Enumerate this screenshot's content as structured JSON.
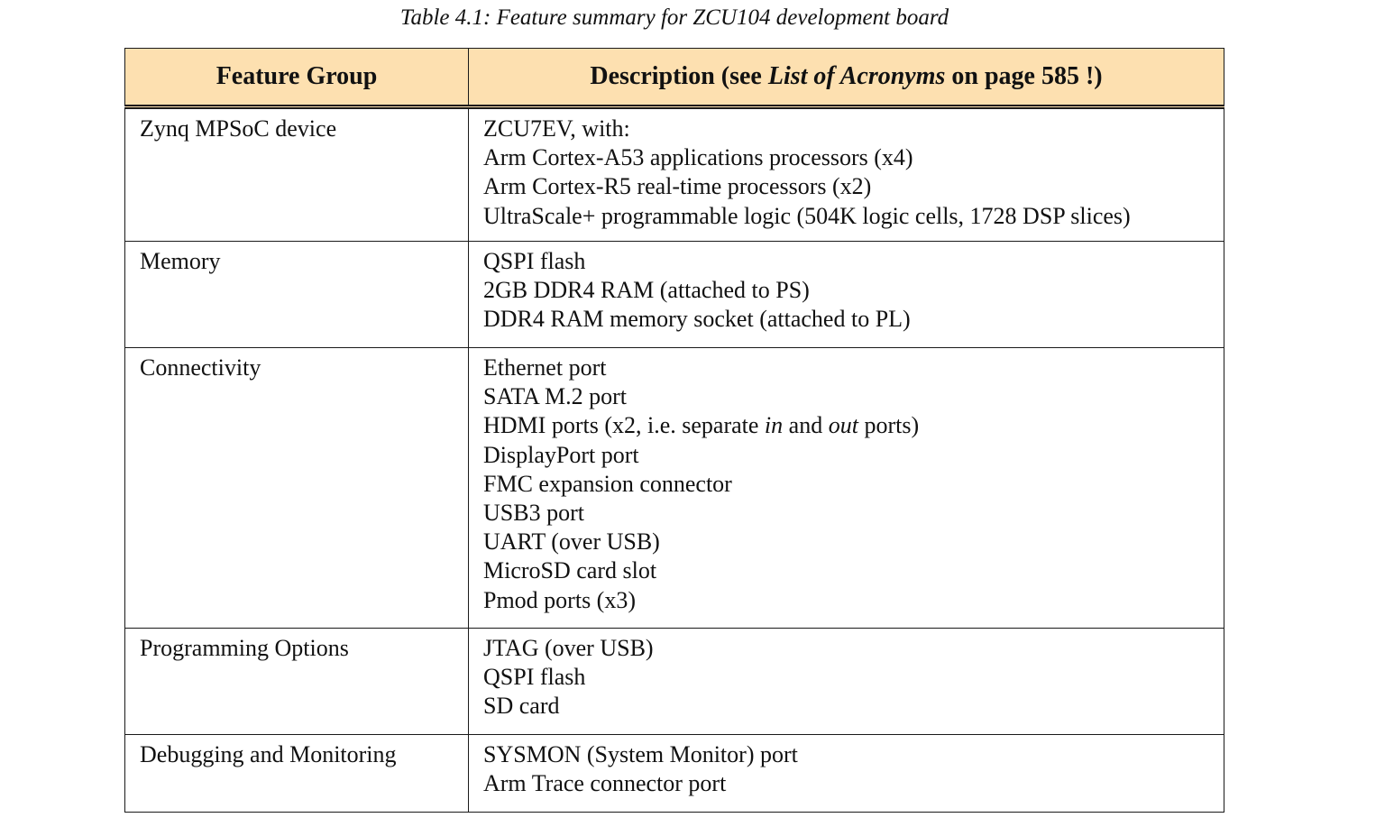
{
  "caption": "Table 4.1: Feature summary for ZCU104 development board",
  "header": {
    "col1": "Feature Group",
    "col2_prefix": "Description (see ",
    "col2_italic": "List of Acronyms",
    "col2_suffix": " on page 585 !)"
  },
  "rows": [
    {
      "group": "Zynq MPSoC device",
      "lines": [
        "ZCU7EV, with:",
        "Arm Cortex-A53 applications processors (x4)",
        "Arm Cortex-R5 real-time processors (x2)",
        "UltraScale+ programmable logic (504K logic cells, 1728 DSP slices)"
      ]
    },
    {
      "group": "Memory",
      "lines": [
        "QSPI flash",
        "2GB DDR4 RAM (attached to PS)",
        "DDR4 RAM memory socket (attached to PL)"
      ]
    },
    {
      "group": "Connectivity",
      "lines": [
        "Ethernet port",
        "SATA M.2 port",
        {
          "a": "HDMI ports (x2, i.e. separate ",
          "b": "in",
          "c": " and ",
          "d": "out",
          "e": " ports)"
        },
        "DisplayPort port",
        "FMC expansion connector",
        "USB3 port",
        "UART (over USB)",
        "MicroSD card slot",
        "Pmod ports (x3)"
      ]
    },
    {
      "group": "Programming Options",
      "lines": [
        "JTAG (over USB)",
        "QSPI flash",
        "SD card"
      ]
    },
    {
      "group": "Debugging and Monitoring",
      "lines": [
        "SYSMON (System Monitor) port",
        "Arm Trace connector port"
      ]
    }
  ]
}
